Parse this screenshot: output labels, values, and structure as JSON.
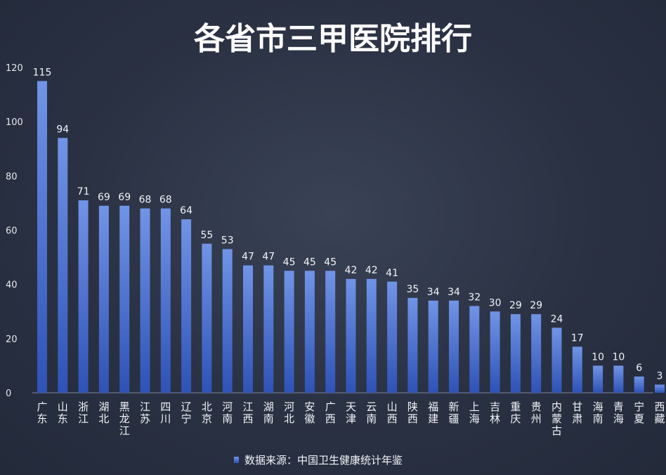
{
  "chart_data": {
    "type": "bar",
    "title": "各省市三甲医院排行",
    "categories": [
      "广东",
      "山东",
      "浙江",
      "湖北",
      "黑龙江",
      "江苏",
      "四川",
      "辽宁",
      "北京",
      "河南",
      "江西",
      "湖南",
      "河北",
      "安徽",
      "广西",
      "天津",
      "云南",
      "山西",
      "陕西",
      "福建",
      "新疆",
      "上海",
      "吉林",
      "重庆",
      "贵州",
      "内蒙古",
      "甘肃",
      "海南",
      "青海",
      "宁夏",
      "西藏"
    ],
    "series": [
      {
        "name": "数据来源：中国卫生健康统计年鉴",
        "values": [
          115,
          94,
          71,
          69,
          69,
          68,
          68,
          64,
          55,
          53,
          47,
          47,
          45,
          45,
          45,
          42,
          42,
          41,
          35,
          34,
          34,
          32,
          30,
          29,
          29,
          24,
          17,
          10,
          10,
          6,
          3
        ]
      }
    ],
    "yticks": [
      0,
      20,
      40,
      60,
      80,
      100,
      120
    ],
    "ylim": [
      0,
      120
    ],
    "xlabel": "",
    "ylabel": "",
    "grid": false,
    "legend": "bottom-center",
    "colors": {
      "bar_top": "#6f93e6",
      "bar_bottom": "#2f55b8",
      "background": "#2b3244"
    }
  }
}
